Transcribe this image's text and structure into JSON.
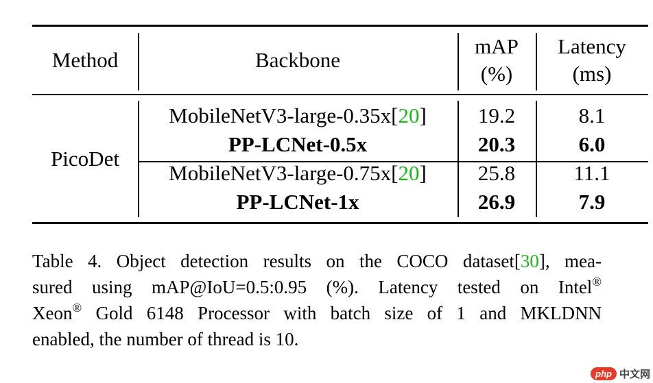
{
  "table": {
    "headers": {
      "method": "Method",
      "backbone": "Backbone",
      "map_line1": "mAP",
      "map_line2": "(%)",
      "latency_line1": "Latency",
      "latency_line2": "(ms)"
    },
    "group_method": "PicoDet",
    "rows": [
      {
        "backbone": "MobileNetV3-large-0.35x",
        "cite": "20",
        "map": "19.2",
        "latency": "8.1",
        "bold": false
      },
      {
        "backbone": "PP-LCNet-0.5x",
        "cite": "",
        "map": "20.3",
        "latency": "6.0",
        "bold": true
      },
      {
        "backbone": "MobileNetV3-large-0.75x",
        "cite": "20",
        "map": "25.8",
        "latency": "11.1",
        "bold": false
      },
      {
        "backbone": "PP-LCNet-1x",
        "cite": "",
        "map": "26.9",
        "latency": "7.9",
        "bold": true
      }
    ]
  },
  "caption": {
    "l1_a": "Table 4. Object detection results on the COCO dataset[",
    "l1_cite": "30",
    "l1_b": "], mea-",
    "l2_a": "sured using mAP@IoU=0.5:0.95 (%).  Latency tested on Intel",
    "reg": "®",
    "l3_a": "Xeon",
    "l3_b": " Gold 6148 Processor with batch size of 1 and MKLDNN",
    "l4": "enabled, the number of thread is 10."
  },
  "watermark": {
    "badge": "php",
    "text": "中文网"
  }
}
